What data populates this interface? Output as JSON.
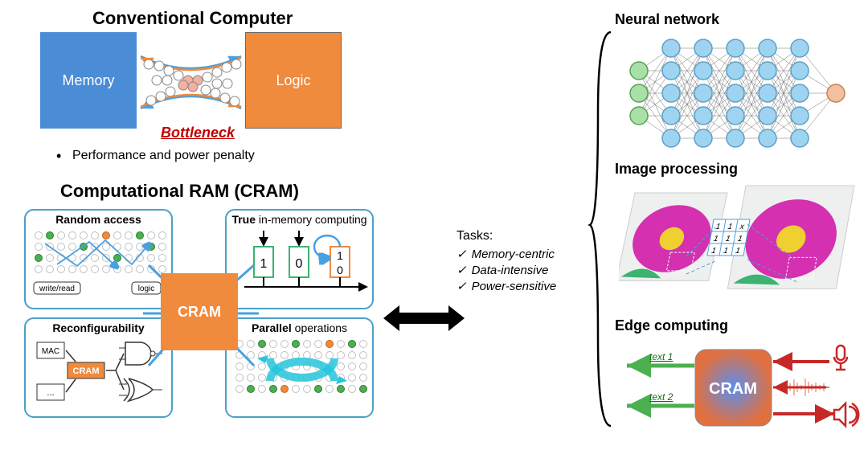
{
  "conventional": {
    "title": "Conventional Computer",
    "memory_label": "Memory",
    "logic_label": "Logic",
    "bottleneck_label": "Bottleneck",
    "penalty": "Performance and power penalty",
    "colors": {
      "memory": "#4a8cd6",
      "logic": "#f08a3c",
      "bottleneck_text": "#c00000"
    }
  },
  "cram": {
    "title": "Computational RAM (CRAM)",
    "center_label": "CRAM",
    "features": {
      "f1": {
        "bold": "Random access",
        "rest": ""
      },
      "f2": {
        "bold": "Reconfigurability",
        "rest": ""
      },
      "f3": {
        "bold": "True",
        "rest": " in-memory computing"
      },
      "f4": {
        "bold": "Parallel",
        "rest": " operations"
      }
    },
    "labels": {
      "write_read": "write/read",
      "logic": "logic",
      "mac": "MAC",
      "cram_small": "CRAM",
      "ellipsis": "..."
    },
    "cell_values": [
      "1",
      "0",
      "1",
      "0"
    ],
    "colors": {
      "box_border": "#4aa0c8",
      "dot_empty": "#dcdcdc",
      "dot_green": "#4caf50",
      "dot_orange": "#f08a3c",
      "arrow_blue": "#4aa0e0",
      "cell_green": "#3cb371",
      "cell_orange": "#f08a3c",
      "cyan_arrow": "#26c6da"
    }
  },
  "tasks": {
    "heading": "Tasks:",
    "items": [
      "Memory-centric",
      "Data-intensive",
      "Power-sensitive"
    ]
  },
  "right": {
    "nn_title": "Neural network",
    "ip_title": "Image processing",
    "ec_title": "Edge computing",
    "nn_colors": {
      "input": "#8fd68f",
      "hidden": "#9fd4f0",
      "output": "#f0b090",
      "line": "#707070"
    },
    "ip": {
      "flower_petal": "#d430b0",
      "flower_center": "#f0d030",
      "leaf": "#3cb371",
      "kernel_border": "#4aa0e0",
      "kernel_vals": [
        "1",
        "1",
        "x",
        "1",
        "1",
        "1",
        "1",
        "1",
        "1"
      ]
    },
    "ec": {
      "text1": "text 1",
      "text2": "text 2",
      "cram_label": "CRAM",
      "arrow_green": "#4caf50",
      "arrow_red": "#c62828",
      "box_grad_inner": "#5a8ff0",
      "box_grad_outer": "#e07040"
    }
  }
}
